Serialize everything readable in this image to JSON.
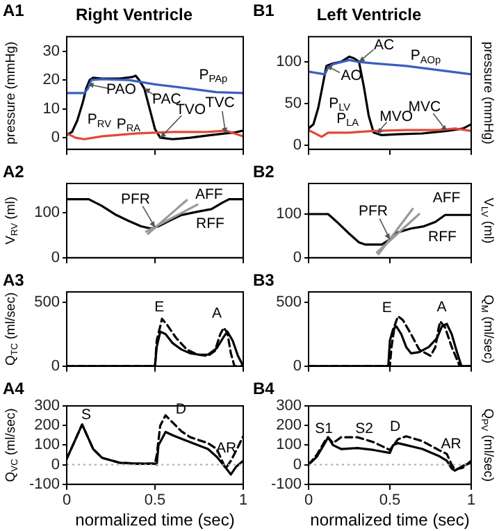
{
  "chart_data": [
    {
      "type": "line",
      "title": "Right Ventricle",
      "ylabel": "pressure (mmHg)",
      "xlim": [
        0,
        1
      ],
      "xticks": [
        0,
        0.5,
        1
      ],
      "ylim": [
        -4,
        35
      ],
      "yticks": [
        0,
        10,
        20,
        30
      ],
      "tick_labels": "y",
      "annotations": [
        "A1",
        {
          "text": "P$_{PAp}$",
          "x": 0.83,
          "y": 16
        },
        {
          "text": "PAO",
          "x": 0.12,
          "y": 18.5
        },
        {
          "text": "PAC",
          "x": 0.44,
          "y": 17
        },
        {
          "text": "P$_{RV}$",
          "x": 0.09,
          "y": 12
        },
        {
          "text": "TVO",
          "x": 0.53,
          "y": 0
        },
        {
          "text": "TVC",
          "x": 0.9,
          "y": 1.5
        },
        {
          "text": "P$_{RA}$",
          "x": 0.35,
          "y": 1.25
        }
      ],
      "series": [
        {
          "color": "#3a5fbf",
          "x": [
            0,
            0.1,
            0.12,
            0.14,
            0.2,
            0.35,
            0.4,
            0.5,
            0.7,
            0.85,
            1
          ],
          "values": [
            15.5,
            15.5,
            17,
            20,
            20.3,
            20,
            19.5,
            18.5,
            17,
            15.8,
            15.5
          ]
        },
        {
          "color": "#e0493a",
          "x": [
            0,
            0.05,
            0.1,
            0.2,
            0.4,
            0.6,
            0.8,
            0.9,
            0.95,
            1
          ],
          "values": [
            1.5,
            0,
            -0.5,
            0.5,
            1.5,
            2,
            2,
            2.5,
            1.5,
            0.5
          ]
        },
        {
          "color": "#000000",
          "x": [
            0,
            0.03,
            0.06,
            0.09,
            0.11,
            0.13,
            0.15,
            0.2,
            0.3,
            0.37,
            0.39,
            0.41,
            0.44,
            0.47,
            0.5,
            0.53,
            0.6,
            0.7,
            0.8,
            0.9,
            0.95,
            1
          ],
          "values": [
            1,
            2,
            6,
            12,
            17,
            20,
            20.8,
            20.5,
            20.5,
            21,
            21.5,
            20,
            17,
            10,
            3,
            0,
            -0.5,
            0,
            0.8,
            1.5,
            1.8,
            2.5
          ]
        }
      ]
    },
    {
      "type": "line",
      "title": "Left Ventricle",
      "ylabel": "pressure (mmHg)",
      "xlim": [
        0,
        1
      ],
      "xticks": [
        0,
        0.5,
        1
      ],
      "ylim": [
        -5,
        130
      ],
      "yticks": [
        0,
        50,
        100
      ],
      "tick_labels": "y",
      "annotations": [
        "B1",
        {
          "text": "AC",
          "x": 0.31,
          "y": 100
        },
        {
          "text": "P$_{AOp}$",
          "x": 0.72,
          "y": 92
        },
        {
          "text": "AO",
          "x": 0.11,
          "y": 95
        },
        {
          "text": "P$_{LV}$",
          "x": 0.08,
          "y": 65
        },
        {
          "text": "P$_{LA}$",
          "x": 0.24,
          "y": 15
        },
        {
          "text": "MVO",
          "x": 0.42,
          "y": 14
        },
        {
          "text": "MVC",
          "x": 0.85,
          "y": 17
        }
      ],
      "series": [
        {
          "color": "#3a5fbf",
          "x": [
            0,
            0.1,
            0.12,
            0.15,
            0.25,
            0.3,
            0.4,
            0.6,
            0.8,
            1
          ],
          "values": [
            88,
            85,
            93,
            97,
            102,
            100,
            98,
            95,
            90,
            85
          ]
        },
        {
          "color": "#e0493a",
          "x": [
            0,
            0.05,
            0.08,
            0.12,
            0.25,
            0.4,
            0.6,
            0.8,
            0.9,
            1
          ],
          "values": [
            18,
            13,
            10,
            15,
            15,
            17,
            18,
            18,
            20,
            17
          ]
        },
        {
          "color": "#000000",
          "x": [
            0,
            0.03,
            0.06,
            0.09,
            0.11,
            0.15,
            0.2,
            0.25,
            0.28,
            0.31,
            0.34,
            0.37,
            0.4,
            0.45,
            0.55,
            0.7,
            0.85,
            0.95,
            1
          ],
          "values": [
            20,
            25,
            45,
            75,
            95,
            98,
            100,
            106,
            104,
            100,
            70,
            35,
            15,
            12,
            13,
            14,
            17,
            20,
            25
          ]
        }
      ]
    },
    {
      "type": "line",
      "ylabel": "V$_{RV}$ (ml)",
      "xlim": [
        0,
        1
      ],
      "xticks": [
        0,
        0.5,
        1
      ],
      "ylim": [
        0,
        165
      ],
      "yticks": [
        0,
        100
      ],
      "tick_labels": "y",
      "annotations": [
        "A2",
        {
          "text": "PFR",
          "x": 0.5,
          "y": 68
        },
        {
          "text": "AFF",
          "x": 0.68,
          "y": 128
        },
        {
          "text": "RFF",
          "x": 0.75,
          "y": 103
        }
      ],
      "series": [
        {
          "color": "#999999",
          "x": [
            0.46,
            0.68
          ],
          "values": [
            53,
            128
          ]
        },
        {
          "color": "#999999",
          "x": [
            0.45,
            0.74
          ],
          "values": [
            58,
            118
          ]
        },
        {
          "color": "#000000",
          "x": [
            0,
            0.125,
            0.2,
            0.28,
            0.35,
            0.42,
            0.475,
            0.52,
            0.58,
            0.65,
            0.75,
            0.82,
            0.88,
            0.92,
            1
          ],
          "values": [
            130,
            130,
            115,
            95,
            82,
            70,
            65,
            70,
            82,
            95,
            103,
            108,
            122,
            130,
            130
          ]
        }
      ]
    },
    {
      "type": "line",
      "ylabel": "V$_{LV}$ (ml)",
      "xlim": [
        0,
        1
      ],
      "xticks": [
        0,
        0.5,
        1
      ],
      "ylim": [
        0,
        170
      ],
      "yticks": [
        0,
        100
      ],
      "tick_labels": "y",
      "annotations": [
        "B2",
        {
          "text": "PFR",
          "x": 0.5,
          "y": 42
        },
        {
          "text": "AFF",
          "x": 0.9,
          "y": 98
        },
        {
          "text": "RFF",
          "x": 0.78,
          "y": 82
        }
      ],
      "series": [
        {
          "color": "#999999",
          "x": [
            0.43,
            0.64
          ],
          "values": [
            8,
            112
          ]
        },
        {
          "color": "#999999",
          "x": [
            0.42,
            0.68
          ],
          "values": [
            12,
            100
          ]
        },
        {
          "color": "#000000",
          "x": [
            0,
            0.12,
            0.18,
            0.25,
            0.31,
            0.35,
            0.45,
            0.5,
            0.54,
            0.63,
            0.71,
            0.78,
            0.84,
            1
          ],
          "values": [
            100,
            100,
            80,
            55,
            35,
            30,
            30,
            42,
            57,
            67,
            72,
            82,
            98,
            98
          ]
        }
      ]
    },
    {
      "type": "line",
      "ylabel": "Q$_{TC}$ (ml/sec)",
      "xlim": [
        0,
        1
      ],
      "xticks": [
        0,
        0.5,
        1
      ],
      "ylim": [
        0,
        580
      ],
      "yticks": [
        0,
        500
      ],
      "tick_labels": "y",
      "annotations": [
        "A3",
        {
          "text": "E",
          "x": 0.54,
          "y": 370
        },
        {
          "text": "A",
          "x": 0.89,
          "y": 300
        }
      ],
      "series": [
        {
          "color": "#000000",
          "line_style": "solid",
          "x": [
            0,
            0.5,
            0.51,
            0.53,
            0.56,
            0.6,
            0.65,
            0.7,
            0.75,
            0.8,
            0.85,
            0.89,
            0.91,
            0.94,
            0.97,
            1
          ],
          "values": [
            0,
            0,
            150,
            270,
            250,
            180,
            130,
            100,
            90,
            90,
            140,
            230,
            270,
            200,
            80,
            0
          ]
        },
        {
          "color": "#000000",
          "line_style": "dashed",
          "x": [
            0,
            0.5,
            0.51,
            0.54,
            0.57,
            0.62,
            0.68,
            0.74,
            0.8,
            0.84,
            0.87,
            0.89,
            0.91,
            0.93,
            0.95,
            1
          ],
          "values": [
            0,
            0,
            200,
            370,
            320,
            220,
            130,
            90,
            80,
            120,
            250,
            300,
            260,
            100,
            0,
            0
          ]
        }
      ]
    },
    {
      "type": "line",
      "ylabel": "Q$_{M}$ (ml/sec)",
      "xlim": [
        0,
        1
      ],
      "xticks": [
        0,
        0.5,
        1
      ],
      "ylim": [
        0,
        580
      ],
      "yticks": [
        0,
        500
      ],
      "tick_labels": "y",
      "annotations": [
        "B3",
        {
          "text": "E",
          "x": 0.55,
          "y": 390
        },
        {
          "text": "A",
          "x": 0.81,
          "y": 350
        }
      ],
      "series": [
        {
          "color": "#000000",
          "line_style": "solid",
          "x": [
            0,
            0.49,
            0.5,
            0.52,
            0.54,
            0.57,
            0.6,
            0.63,
            0.68,
            0.74,
            0.79,
            0.82,
            0.85,
            0.88,
            0.91,
            0.94,
            1
          ],
          "values": [
            0,
            0,
            200,
            290,
            310,
            250,
            150,
            100,
            110,
            150,
            220,
            310,
            330,
            250,
            120,
            0,
            0
          ]
        },
        {
          "color": "#000000",
          "line_style": "dashed",
          "x": [
            0,
            0.5,
            0.51,
            0.53,
            0.55,
            0.58,
            0.63,
            0.68,
            0.75,
            0.78,
            0.8,
            0.81,
            0.84,
            0.88,
            0.93,
            1
          ],
          "values": [
            0,
            0,
            150,
            320,
            390,
            360,
            250,
            130,
            80,
            150,
            300,
            350,
            300,
            150,
            0,
            0
          ]
        }
      ]
    },
    {
      "type": "line",
      "ylabel": "Q$_{VC}$ (ml/sec)",
      "xlabel": "normalized time (sec)",
      "xlim": [
        0,
        1
      ],
      "xticks": [
        0,
        0.5,
        1
      ],
      "ylim": [
        -100,
        300
      ],
      "yticks": [
        -100,
        0,
        100,
        200,
        300
      ],
      "ref_lines": [
        {
          "axis": "y",
          "value": 0,
          "color": "#aaaaaa",
          "line_style": "dotted"
        }
      ],
      "annotations": [
        "A4",
        {
          "text": "S",
          "x": 0.087,
          "y": 205
        },
        {
          "text": "D",
          "x": 0.56,
          "y": 252
        },
        {
          "text": "AR",
          "x": 0.88,
          "y": 20
        }
      ],
      "series": [
        {
          "color": "#000000",
          "line_style": "solid",
          "x": [
            0,
            0.04,
            0.087,
            0.1,
            0.15,
            0.2,
            0.3,
            0.4,
            0.5,
            0.51,
            0.52,
            0.56,
            0.6,
            0.7,
            0.8,
            0.85,
            0.9,
            0.93,
            0.96,
            1
          ],
          "values": [
            30,
            110,
            205,
            180,
            80,
            35,
            10,
            5,
            5,
            0,
            100,
            167,
            150,
            115,
            80,
            40,
            -15,
            -50,
            -10,
            20
          ]
        },
        {
          "color": "#000000",
          "line_style": "dashed",
          "x": [
            0,
            0.04,
            0.087,
            0.1,
            0.15,
            0.2,
            0.3,
            0.4,
            0.5,
            0.51,
            0.53,
            0.56,
            0.6,
            0.65,
            0.7,
            0.8,
            0.85,
            0.88,
            0.9,
            0.93,
            0.97,
            1
          ],
          "values": [
            30,
            110,
            205,
            180,
            80,
            35,
            10,
            5,
            5,
            50,
            200,
            252,
            215,
            170,
            140,
            110,
            80,
            20,
            -20,
            20,
            90,
            145
          ]
        }
      ]
    },
    {
      "type": "line",
      "ylabel": "Q$_{PV}$ (ml/sec)",
      "xlabel": "normalized time (sec)",
      "xlim": [
        0,
        1
      ],
      "xticks": [
        0,
        0.5,
        1
      ],
      "ylim": [
        -100,
        300
      ],
      "yticks": [
        -100,
        0,
        100,
        200,
        300
      ],
      "ref_lines": [
        {
          "axis": "y",
          "value": 0,
          "color": "#aaaaaa",
          "line_style": "dotted"
        }
      ],
      "annotations": [
        "B4",
        {
          "text": "S1",
          "x": 0.12,
          "y": 140
        },
        {
          "text": "S2",
          "x": 0.3,
          "y": 140
        },
        {
          "text": "D",
          "x": 0.55,
          "y": 130
        },
        {
          "text": "AR",
          "x": 0.8,
          "y": 75
        }
      ],
      "series": [
        {
          "color": "#000000",
          "line_style": "solid",
          "x": [
            0,
            0.05,
            0.1,
            0.12,
            0.15,
            0.2,
            0.3,
            0.4,
            0.5,
            0.52,
            0.55,
            0.6,
            0.7,
            0.8,
            0.85,
            0.88,
            0.9,
            0.95,
            1
          ],
          "values": [
            0,
            40,
            110,
            140,
            100,
            80,
            85,
            75,
            60,
            100,
            110,
            100,
            80,
            45,
            20,
            -20,
            -30,
            -5,
            10
          ]
        },
        {
          "color": "#000000",
          "line_style": "dashed",
          "x": [
            0,
            0.05,
            0.1,
            0.12,
            0.15,
            0.2,
            0.3,
            0.4,
            0.5,
            0.55,
            0.6,
            0.7,
            0.8,
            0.85,
            0.88,
            0.9,
            0.95,
            1
          ],
          "values": [
            0,
            50,
            120,
            140,
            110,
            140,
            140,
            115,
            75,
            130,
            145,
            120,
            75,
            55,
            0,
            -25,
            -15,
            20
          ]
        }
      ]
    }
  ]
}
